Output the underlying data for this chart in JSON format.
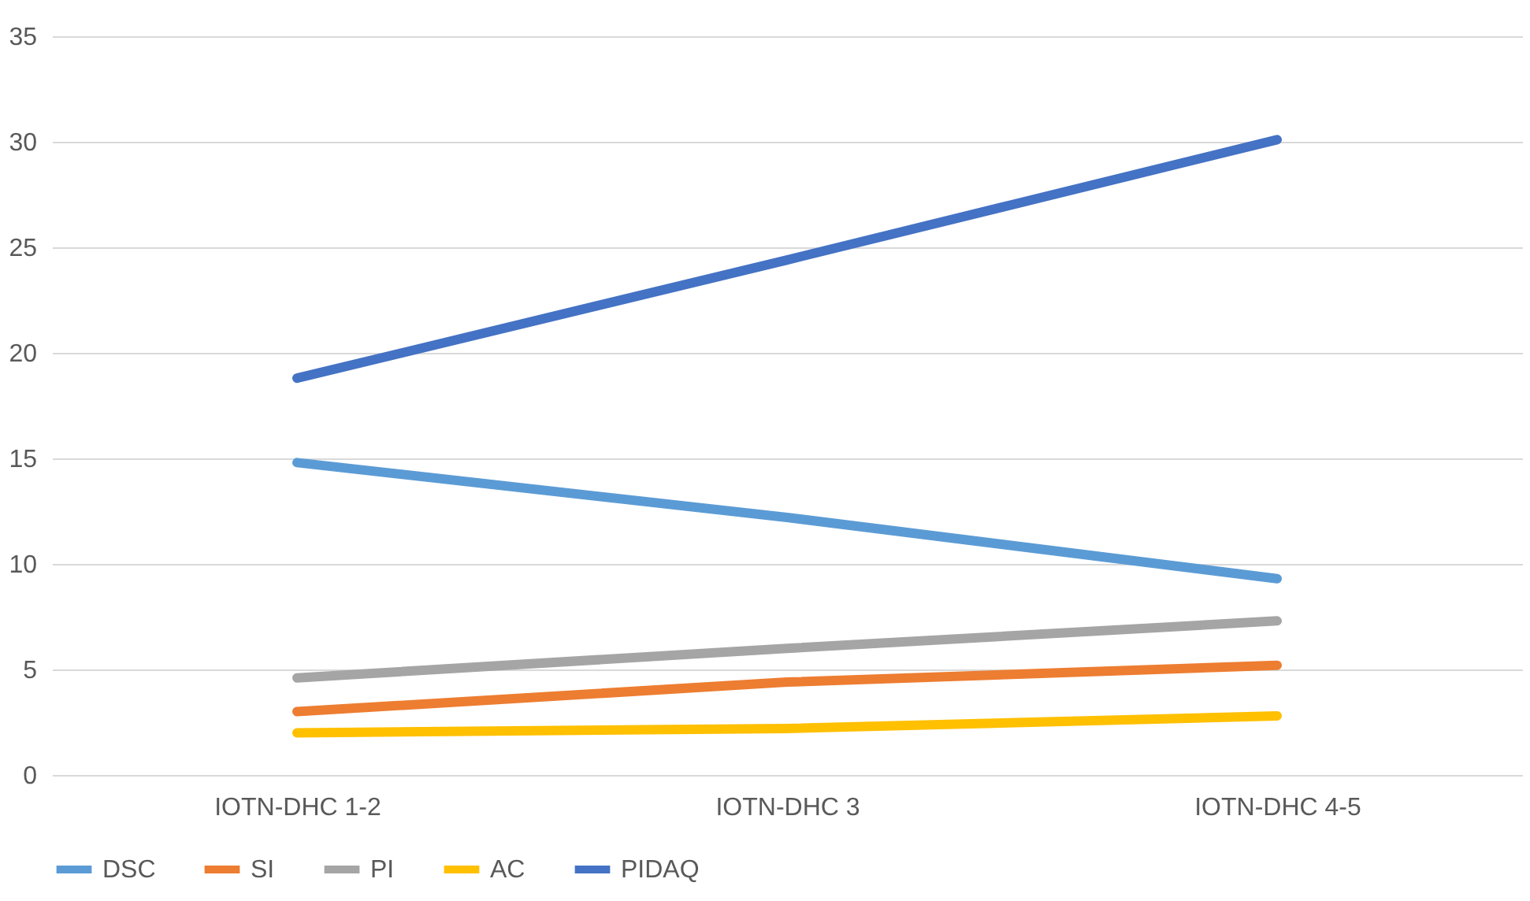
{
  "chart_data": {
    "type": "line",
    "categories": [
      "IOTN-DHC 1-2",
      "IOTN-DHC 3",
      "IOTN-DHC 4-5"
    ],
    "series": [
      {
        "name": "DSC",
        "color": "#5b9bd5",
        "values": [
          14.8,
          12.2,
          9.3
        ]
      },
      {
        "name": "SI",
        "color": "#ed7d31",
        "values": [
          3.0,
          4.4,
          5.2
        ]
      },
      {
        "name": "PI",
        "color": "#a5a5a5",
        "values": [
          4.6,
          6.0,
          7.3
        ]
      },
      {
        "name": "AC",
        "color": "#ffc000",
        "values": [
          2.0,
          2.2,
          2.8
        ]
      },
      {
        "name": "PIDAQ",
        "color": "#4472c4",
        "values": [
          18.8,
          24.4,
          30.1
        ]
      }
    ],
    "ylim": [
      0,
      35
    ],
    "yticks": [
      0,
      5,
      10,
      15,
      20,
      25,
      30,
      35
    ],
    "grid": "y",
    "legend": "bottom",
    "marker": "none",
    "line_style": "solid"
  }
}
